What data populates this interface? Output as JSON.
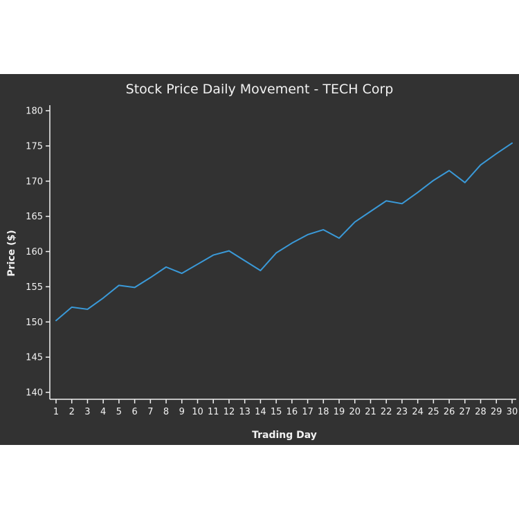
{
  "colors": {
    "background": "#323232",
    "text": "#f2f2f2",
    "series": "#3a9ad9"
  },
  "chart_data": {
    "type": "line",
    "title": "Stock Price Daily Movement - TECH Corp",
    "xlabel": "Trading Day",
    "ylabel": "Price ($)",
    "ylim": [
      140,
      180
    ],
    "xlim": [
      1,
      30
    ],
    "yticks": [
      140,
      145,
      150,
      155,
      160,
      165,
      170,
      175,
      180
    ],
    "grid": false,
    "x": [
      1,
      2,
      3,
      4,
      5,
      6,
      7,
      8,
      9,
      10,
      11,
      12,
      13,
      14,
      15,
      16,
      17,
      18,
      19,
      20,
      21,
      22,
      23,
      24,
      25,
      26,
      27,
      28,
      29,
      30
    ],
    "series": [
      {
        "values": [
          150.2,
          152.1,
          151.8,
          153.4,
          155.2,
          154.9,
          156.3,
          157.8,
          156.9,
          158.2,
          159.5,
          160.1,
          158.7,
          157.3,
          159.8,
          161.2,
          162.4,
          163.1,
          161.9,
          164.2,
          165.7,
          167.2,
          166.8,
          168.4,
          170.1,
          171.5,
          169.8,
          172.3,
          173.9,
          175.4
        ]
      }
    ]
  }
}
